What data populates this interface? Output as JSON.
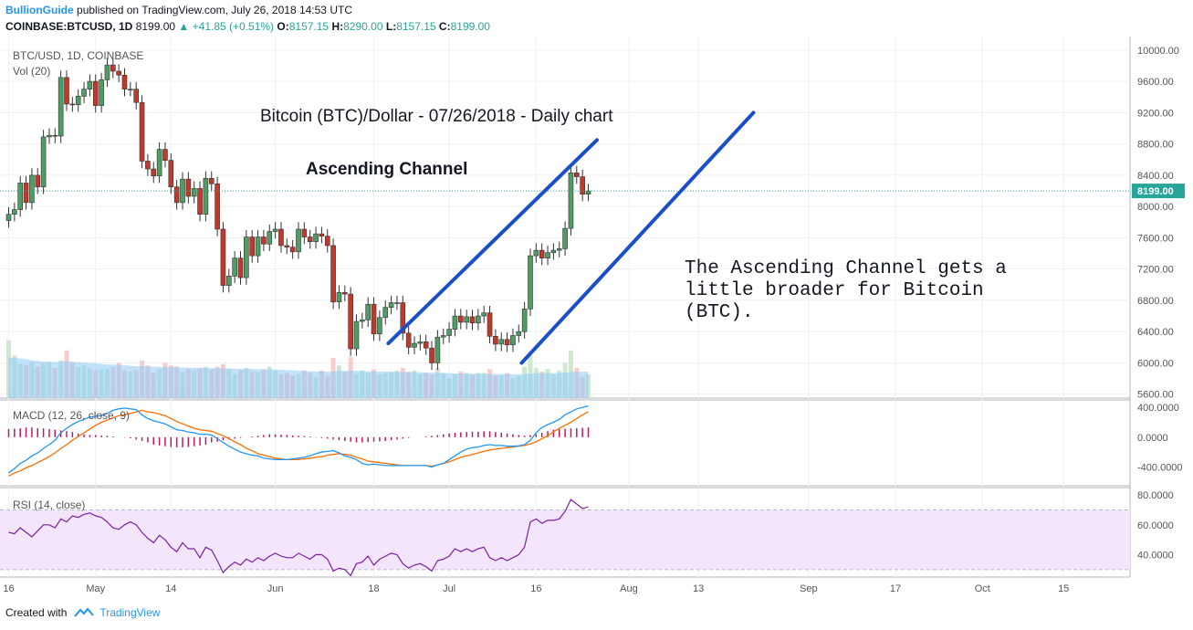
{
  "header": {
    "author": "BullionGuide",
    "published": "published on TradingView.com, July 26, 2018 14:53 UTC",
    "symbol": "COINBASE:BTCUSD, 1D",
    "last": "8199.00",
    "change": "▲ +41.85 (+0.51%)",
    "o_label": "O:",
    "o": "8157.15",
    "h_label": "H:",
    "h": "8290.00",
    "l_label": "L:",
    "l": "8157.15",
    "c_label": "C:",
    "c": "8199.00"
  },
  "footer": {
    "created_with": "Created with",
    "brand": "TradingView"
  },
  "colors": {
    "bull": "#26a69a",
    "bullBody": "#4f9c64",
    "bear": "#c0392b",
    "channel": "#1a4fc8",
    "macd": "#2196f3",
    "signal": "#ff6d00",
    "hist": "#c2185b",
    "rsi": "#7b1fa2",
    "rsiBand": "#f3e5fc",
    "volume": "#90caf9"
  },
  "chart_data": [
    {
      "type": "candlestick",
      "pane": "price",
      "title": "Bitcoin (BTC)/Dollar - 07/26/2018 - Daily chart",
      "legend": "BTC/USD, 1D, COINBASE",
      "volume_legend": "Vol (20)",
      "annotation_heading": "Ascending Channel",
      "annotation_text": [
        "The Ascending Channel gets a",
        "little broader for Bitcoin",
        "(BTC)."
      ],
      "last_price_label": "8199.00",
      "ylim": [
        5550,
        10150
      ],
      "yticks": [
        "10000.00",
        "9600.00",
        "9200.00",
        "8800.00",
        "8400.00",
        "8000.00",
        "7600.00",
        "7200.00",
        "6800.00",
        "6400.00",
        "6000.00",
        "5600.00"
      ],
      "xticks": [
        {
          "label": "16",
          "day": 0
        },
        {
          "label": "May",
          "day": 15
        },
        {
          "label": "14",
          "day": 28
        },
        {
          "label": "Jun",
          "day": 46
        },
        {
          "label": "18",
          "day": 63
        },
        {
          "label": "Jul",
          "day": 76
        },
        {
          "label": "16",
          "day": 91
        },
        {
          "label": "Aug",
          "day": 107
        },
        {
          "label": "13",
          "day": 119
        },
        {
          "label": "Sep",
          "day": 138
        },
        {
          "label": "17",
          "day": 153
        },
        {
          "label": "Oct",
          "day": 168
        },
        {
          "label": "15",
          "day": 182
        }
      ],
      "channel_lines": [
        {
          "x1": 65.5,
          "y1": 6250,
          "x2": 101.5,
          "y2": 8850
        },
        {
          "x1": 88.5,
          "y1": 6000,
          "x2": 128.5,
          "y2": 9200
        }
      ],
      "close": [
        7900,
        7960,
        8300,
        8050,
        8400,
        8250,
        8890,
        8910,
        8900,
        9650,
        9310,
        9300,
        9410,
        9500,
        9600,
        9290,
        9620,
        9810,
        9730,
        9680,
        9500,
        9500,
        9330,
        8580,
        8480,
        8390,
        8730,
        8590,
        8250,
        8050,
        8350,
        8130,
        8230,
        7900,
        8360,
        8290,
        7710,
        6990,
        7110,
        7340,
        7090,
        7610,
        7370,
        7610,
        7520,
        7680,
        7710,
        7500,
        7480,
        7420,
        7710,
        7610,
        7550,
        7650,
        7620,
        7500,
        6780,
        6900,
        6880,
        6180,
        6530,
        6550,
        6750,
        6370,
        6580,
        6710,
        6770,
        6770,
        6380,
        6200,
        6250,
        6270,
        6190,
        6000,
        6330,
        6350,
        6430,
        6600,
        6520,
        6590,
        6510,
        6600,
        6640,
        6340,
        6240,
        6300,
        6230,
        6350,
        6400,
        6690,
        7370,
        7440,
        7340,
        7410,
        7440,
        7460,
        7720,
        8430,
        8380,
        8157,
        8199
      ],
      "volume": [
        230,
        170,
        135,
        130,
        145,
        125,
        140,
        145,
        120,
        150,
        190,
        140,
        125,
        130,
        120,
        110,
        115,
        115,
        125,
        140,
        110,
        105,
        110,
        150,
        130,
        100,
        115,
        140,
        130,
        125,
        105,
        115,
        110,
        120,
        125,
        115,
        125,
        135,
        115,
        95,
        110,
        120,
        105,
        105,
        115,
        125,
        110,
        95,
        100,
        90,
        95,
        110,
        100,
        85,
        110,
        90,
        160,
        130,
        105,
        165,
        95,
        110,
        100,
        115,
        95,
        100,
        105,
        110,
        120,
        105,
        110,
        95,
        100,
        95,
        120,
        100,
        80,
        95,
        105,
        100,
        95,
        100,
        100,
        115,
        90,
        90,
        100,
        80,
        90,
        125,
        170,
        120,
        105,
        115,
        95,
        110,
        140,
        190,
        120,
        85,
        95
      ],
      "volume_ma": [
        160,
        160,
        158,
        155,
        150,
        148,
        145,
        145,
        143,
        145,
        147,
        145,
        143,
        142,
        140,
        138,
        136,
        134,
        133,
        133,
        131,
        129,
        127,
        127,
        127,
        125,
        124,
        124,
        124,
        123,
        122,
        121,
        120,
        120,
        120,
        119,
        119,
        119,
        118,
        117,
        117,
        117,
        116,
        115,
        114,
        114,
        114,
        113,
        112,
        111,
        109,
        108,
        107,
        106,
        106,
        105,
        107,
        108,
        108,
        110,
        109,
        108,
        107,
        106,
        106,
        105,
        105,
        104,
        104,
        104,
        103,
        103,
        102,
        101,
        101,
        100,
        99,
        98,
        98,
        98,
        97,
        97,
        97,
        97,
        96,
        96,
        96,
        95,
        95,
        96,
        98,
        99,
        99,
        100,
        100,
        100,
        101,
        104,
        105,
        105,
        106
      ]
    },
    {
      "type": "line",
      "pane": "macd",
      "legend": "MACD (12, 26, close, 9)",
      "ylim": [
        -650,
        500
      ],
      "yticks": [
        "400.0000",
        "0.0000",
        "-400.0000"
      ],
      "series": [
        {
          "name": "MACD",
          "values": [
            -480,
            -420,
            -350,
            -310,
            -250,
            -210,
            -150,
            -100,
            -40,
            60,
            120,
            170,
            210,
            240,
            270,
            280,
            290,
            320,
            360,
            380,
            390,
            380,
            370,
            300,
            250,
            220,
            200,
            180,
            140,
            100,
            90,
            70,
            60,
            40,
            40,
            30,
            -20,
            -70,
            -120,
            -160,
            -200,
            -220,
            -240,
            -250,
            -280,
            -290,
            -300,
            -300,
            -300,
            -290,
            -280,
            -270,
            -250,
            -220,
            -200,
            -190,
            -180,
            -210,
            -250,
            -270,
            -300,
            -350,
            -370,
            -360,
            -370,
            -380,
            -380,
            -380,
            -380,
            -380,
            -380,
            -380,
            -380,
            -400,
            -370,
            -350,
            -300,
            -250,
            -200,
            -160,
            -140,
            -130,
            -110,
            -100,
            -110,
            -110,
            -120,
            -120,
            -115,
            -100,
            -40,
            60,
            130,
            170,
            200,
            240,
            300,
            340,
            380,
            400,
            420
          ]
        },
        {
          "name": "Signal",
          "values": [
            -520,
            -480,
            -450,
            -410,
            -380,
            -340,
            -300,
            -260,
            -210,
            -150,
            -100,
            -40,
            10,
            60,
            110,
            160,
            200,
            230,
            260,
            290,
            300,
            320,
            340,
            360,
            340,
            330,
            310,
            290,
            250,
            210,
            180,
            150,
            120,
            100,
            90,
            80,
            50,
            20,
            -20,
            -60,
            -100,
            -150,
            -180,
            -220,
            -240,
            -260,
            -280,
            -290,
            -300,
            -300,
            -300,
            -290,
            -280,
            -270,
            -260,
            -240,
            -230,
            -220,
            -230,
            -240,
            -270,
            -290,
            -320,
            -330,
            -340,
            -350,
            -360,
            -370,
            -380,
            -380,
            -380,
            -380,
            -380,
            -390,
            -370,
            -350,
            -330,
            -300,
            -270,
            -250,
            -230,
            -210,
            -190,
            -170,
            -160,
            -150,
            -140,
            -130,
            -120,
            -110,
            -90,
            -60,
            -20,
            20,
            70,
            120,
            160,
            200,
            250,
            300,
            340
          ]
        },
        {
          "name": "Histogram",
          "values": [
            110,
            115,
            120,
            130,
            130,
            120,
            120,
            110,
            100,
            90,
            80,
            70,
            50,
            40,
            30,
            30,
            25,
            20,
            10,
            0,
            -5,
            -15,
            -30,
            -50,
            -70,
            -100,
            -110,
            -120,
            -130,
            -135,
            -135,
            -130,
            -120,
            -110,
            -100,
            -70,
            -60,
            -40,
            -30,
            -20,
            -10,
            0,
            10,
            20,
            30,
            40,
            40,
            35,
            30,
            25,
            20,
            15,
            10,
            -5,
            -10,
            -20,
            -30,
            -40,
            -50,
            -60,
            -70,
            -70,
            -65,
            -60,
            -55,
            -50,
            -40,
            -30,
            -20,
            -10,
            0,
            0,
            10,
            20,
            30,
            40,
            50,
            60,
            65,
            70,
            75,
            75,
            80,
            80,
            70,
            60,
            50,
            40,
            30,
            20,
            30,
            40,
            60,
            80,
            100,
            110,
            115,
            120,
            120,
            125,
            130
          ]
        }
      ]
    },
    {
      "type": "line",
      "pane": "rsi",
      "legend": "RSI (14, close)",
      "ylim": [
        25,
        85
      ],
      "yticks": [
        "80.0000",
        "60.0000",
        "40.0000"
      ],
      "band": [
        30,
        70
      ],
      "series": [
        {
          "name": "RSI",
          "values": [
            55,
            54,
            58,
            55,
            52,
            56,
            60,
            60,
            58,
            64,
            62,
            66,
            65,
            67,
            68,
            66,
            65,
            62,
            58,
            57,
            60,
            62,
            60,
            55,
            51,
            48,
            53,
            50,
            45,
            42,
            48,
            44,
            44,
            38,
            45,
            43,
            36,
            28,
            32,
            35,
            33,
            37,
            35,
            38,
            36,
            39,
            41,
            39,
            38,
            38,
            41,
            39,
            37,
            40,
            40,
            37,
            29,
            31,
            30,
            26,
            34,
            35,
            39,
            33,
            37,
            39,
            41,
            40,
            34,
            31,
            33,
            34,
            32,
            29,
            36,
            37,
            39,
            44,
            42,
            44,
            42,
            44,
            45,
            38,
            36,
            38,
            36,
            38,
            40,
            45,
            62,
            64,
            61,
            63,
            63,
            64,
            69,
            77,
            74,
            71,
            72
          ]
        }
      ]
    }
  ]
}
